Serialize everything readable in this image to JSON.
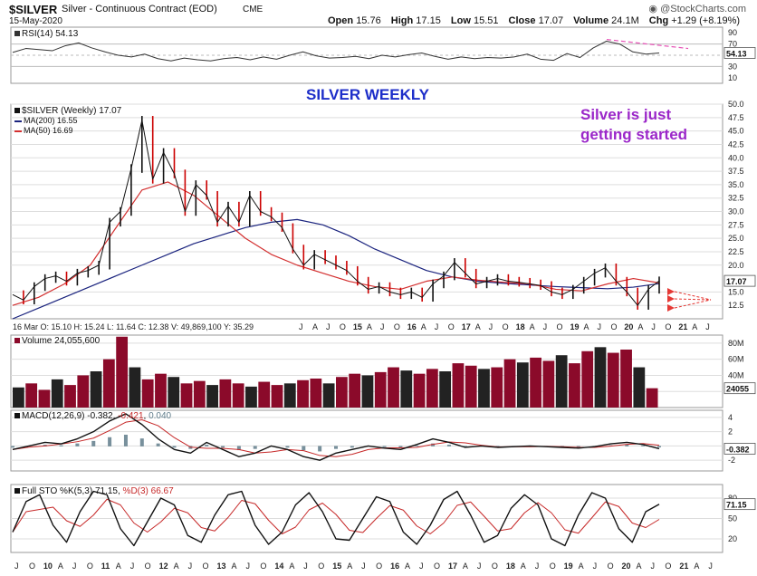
{
  "header": {
    "symbol": "$SILVER",
    "name": "Silver - Continuous Contract (EOD)",
    "exchange": "CME",
    "date": "15-May-2020",
    "copyright": "@StockCharts.com",
    "open_label": "Open",
    "open_value": "15.76",
    "high_label": "High",
    "high_value": "17.15",
    "low_label": "Low",
    "low_value": "15.51",
    "close_label": "Close",
    "close_value": "17.07",
    "volume_label": "Volume",
    "volume_value": "24.1M",
    "chg_label": "Chg",
    "chg_value": "+1.29 (+8.19%)"
  },
  "annotations": {
    "title": "SILVER WEEKLY",
    "comment_line1": "Silver is just",
    "comment_line2": "getting started",
    "ohlc_line": "16 Mar O: 15.10  H: 15.24  L: 11.64  C: 12.38  V: 49,869,100  Y: 35.29"
  },
  "colors": {
    "price": "#111111",
    "down_bar": "#cc0000",
    "ma200": "#1a237e",
    "ma50": "#d32f2f",
    "rsi": "#333333",
    "rsi_trend": "#e64fb5",
    "title": "#1d2ec9",
    "comment": "#9b27c9",
    "volume_down": "#8b0a2a",
    "grid": "#dddddd"
  },
  "chart_data": [
    {
      "type": "line",
      "panel": "rsi",
      "legend": "RSI(14) 54.13",
      "last_value_label": "54.13",
      "y_ticks": [
        "90",
        "70",
        "50",
        "30",
        "10"
      ],
      "ylim": [
        0,
        100
      ],
      "series": [
        {
          "values": [
            55,
            62,
            60,
            58,
            67,
            72,
            63,
            56,
            50,
            47,
            52,
            44,
            40,
            45,
            42,
            40,
            44,
            46,
            42,
            47,
            43,
            50,
            56,
            49,
            45,
            46,
            48,
            44,
            50,
            47,
            51,
            54,
            48,
            43,
            47,
            44,
            46,
            45,
            47,
            52,
            43,
            41,
            53,
            46,
            63,
            75,
            70,
            56,
            52,
            54
          ]
        }
      ],
      "trend_line": {
        "from": 78,
        "to": 62
      }
    },
    {
      "type": "line",
      "panel": "price",
      "legend_title": "$SILVER (Weekly) 17.07",
      "legend_ma200": "MA(200) 16.55",
      "legend_ma50": "MA(50) 16.69",
      "last_value_label": "17.07",
      "y_ticks": [
        "50.0",
        "47.5",
        "45.0",
        "42.5",
        "40.0",
        "37.5",
        "35.0",
        "32.5",
        "30.0",
        "27.5",
        "25.0",
        "22.5",
        "20.0",
        "15.0",
        "12.5"
      ],
      "ylim": [
        10,
        50
      ],
      "x_ticks": [
        "J",
        "A",
        "J",
        "O",
        "15",
        "A",
        "J",
        "O",
        "16",
        "A",
        "J",
        "O",
        "17",
        "A",
        "J",
        "O",
        "18",
        "A",
        "J",
        "O",
        "19",
        "A",
        "J",
        "O",
        "20",
        "A",
        "J",
        "O",
        "21",
        "A",
        "J"
      ],
      "series": [
        {
          "name": "$SILVER (Weekly)",
          "values": [
            14.5,
            13.5,
            16.0,
            17.5,
            18.0,
            17.0,
            18.5,
            19.0,
            20.0,
            28.0,
            30.0,
            38.0,
            47.0,
            36.0,
            41.0,
            37.0,
            30.0,
            35.0,
            33.0,
            28.0,
            31.0,
            28.0,
            33.0,
            30.0,
            29.0,
            27.0,
            23.0,
            20.0,
            22.0,
            21.0,
            20.0,
            19.0,
            17.0,
            15.5,
            16.0,
            15.0,
            14.5,
            15.0,
            14.0,
            16.5,
            18.0,
            20.5,
            18.5,
            16.5,
            17.0,
            17.5,
            17.0,
            16.8,
            16.5,
            16.2,
            15.0,
            14.5,
            15.5,
            17.0,
            18.5,
            19.5,
            17.0,
            15.0,
            12.5,
            15.5,
            17.07
          ]
        },
        {
          "name": "MA(200)",
          "values": [
            10.0,
            12.0,
            14.0,
            16.0,
            18.0,
            20.0,
            22.0,
            24.0,
            25.5,
            27.0,
            28.0,
            28.5,
            27.5,
            25.5,
            23.0,
            21.0,
            19.0,
            17.8,
            17.0,
            16.6,
            16.3,
            16.0,
            15.8,
            15.6,
            15.9,
            16.55
          ]
        },
        {
          "name": "MA(50)",
          "values": [
            12.5,
            14.0,
            16.5,
            20.0,
            27.0,
            34.0,
            35.5,
            33.0,
            29.0,
            25.0,
            22.0,
            20.0,
            18.5,
            17.0,
            16.0,
            15.5,
            17.0,
            17.8,
            17.2,
            16.8,
            16.5,
            15.5,
            15.2,
            16.5,
            17.5,
            16.69
          ]
        }
      ]
    },
    {
      "type": "bar",
      "panel": "volume",
      "legend": "Volume 24,055,600",
      "last_value_label": "24055",
      "y_ticks": [
        "80M",
        "60M",
        "40M",
        "20M"
      ],
      "ylim": [
        0,
        90
      ],
      "values": [
        25,
        30,
        22,
        35,
        28,
        40,
        45,
        60,
        88,
        50,
        35,
        42,
        38,
        30,
        33,
        28,
        35,
        30,
        26,
        32,
        28,
        30,
        34,
        36,
        30,
        38,
        42,
        40,
        44,
        50,
        46,
        42,
        48,
        45,
        55,
        52,
        48,
        50,
        60,
        56,
        62,
        58,
        65,
        55,
        70,
        75,
        68,
        72,
        50,
        24
      ]
    },
    {
      "type": "line",
      "panel": "macd",
      "legend_macd": "MACD(12,26,9) -0.382",
      "legend_signal": "-0.421",
      "legend_hist": "0.040",
      "last_value_label": "-0.382",
      "y_ticks": [
        "4",
        "2",
        "0",
        "-2"
      ],
      "ylim": [
        -3.5,
        5
      ],
      "series": [
        {
          "values": [
            -0.5,
            0.0,
            0.5,
            0.3,
            1.0,
            2.0,
            3.5,
            4.5,
            3.0,
            1.0,
            -0.5,
            -1.0,
            0.5,
            -0.5,
            -1.5,
            -1.0,
            0.0,
            -0.5,
            -1.5,
            -2.0,
            -1.0,
            -0.5,
            0.0,
            -0.3,
            -0.5,
            0.2,
            1.0,
            0.5,
            -0.2,
            0.0,
            -0.2,
            -0.1,
            0.0,
            -0.1,
            -0.2,
            -0.3,
            -0.1,
            0.3,
            0.5,
            0.2,
            -0.382
          ]
        }
      ]
    },
    {
      "type": "line",
      "panel": "full_sto",
      "legend_k": "Full STO %K(5,3) 71.15",
      "legend_d": "%D(3) 66.67",
      "last_value_label": "71.15",
      "y_ticks": [
        "80",
        "50",
        "20"
      ],
      "ylim": [
        0,
        100
      ],
      "x_ticks": [
        "J",
        "O",
        "10",
        "A",
        "J",
        "O",
        "11",
        "A",
        "J",
        "O",
        "12",
        "A",
        "J",
        "O",
        "13",
        "A",
        "J",
        "O",
        "14",
        "A",
        "J",
        "O",
        "15",
        "A",
        "J",
        "O",
        "16",
        "A",
        "J",
        "O",
        "17",
        "A",
        "J",
        "O",
        "18",
        "A",
        "J",
        "O",
        "19",
        "A",
        "J",
        "O",
        "20",
        "A",
        "J",
        "O",
        "21",
        "A",
        "J"
      ],
      "series": [
        {
          "values": [
            30,
            75,
            85,
            40,
            15,
            60,
            90,
            85,
            35,
            10,
            45,
            80,
            70,
            25,
            15,
            55,
            85,
            90,
            40,
            12,
            30,
            70,
            88,
            60,
            20,
            18,
            50,
            82,
            75,
            30,
            12,
            40,
            78,
            90,
            55,
            15,
            25,
            65,
            85,
            70,
            20,
            10,
            55,
            88,
            80,
            35,
            15,
            60,
            71
          ]
        }
      ]
    }
  ]
}
